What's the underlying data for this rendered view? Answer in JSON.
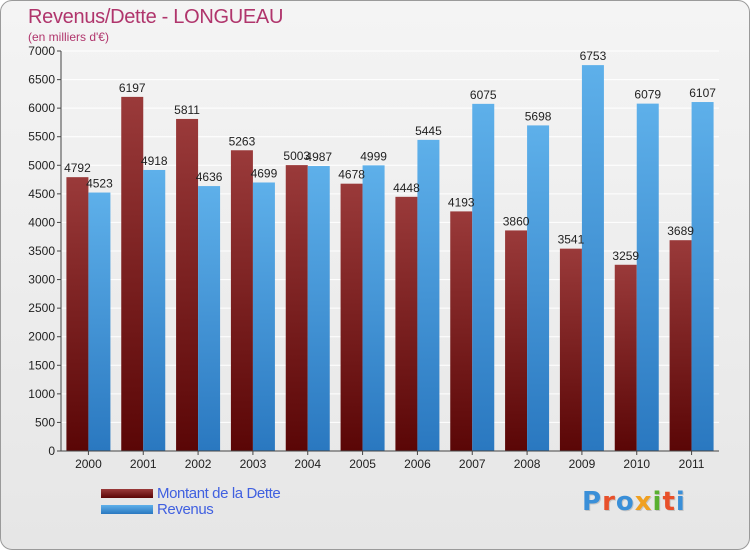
{
  "title": "Revenus/Dette - LONGUEAU",
  "subtitle": "(en milliers d'€)",
  "legend": {
    "debt_label": "Montant de la Dette",
    "revenue_label": "Revenus"
  },
  "logo": {
    "text": "Proxiti",
    "letters": [
      "P",
      "r",
      "o",
      "x",
      "i",
      "t",
      "i"
    ],
    "letter_colors": [
      "#3a8fd8",
      "#e8502a",
      "#3a8fd8",
      "#f0a020",
      "#58b030",
      "#e8502a",
      "#3a8fd8"
    ]
  },
  "colors": {
    "debt_top": "#9a3a3a",
    "debt_bottom": "#5a0606",
    "revenue_top": "#5eb0ea",
    "revenue_bottom": "#2a78c0",
    "grid": "#ffffff",
    "axis_text": "#222222"
  },
  "chart_data": {
    "type": "bar",
    "categories": [
      "2000",
      "2001",
      "2002",
      "2003",
      "2004",
      "2005",
      "2006",
      "2007",
      "2008",
      "2009",
      "2010",
      "2011"
    ],
    "series": [
      {
        "name": "Montant de la Dette",
        "values": [
          4792,
          6197,
          5811,
          5263,
          5003,
          4678,
          4448,
          4193,
          3860,
          3541,
          3259,
          3689
        ]
      },
      {
        "name": "Revenus",
        "values": [
          4523,
          4918,
          4636,
          4699,
          4987,
          4999,
          5445,
          6075,
          5698,
          6753,
          6079,
          6107
        ]
      }
    ],
    "ylim": [
      0,
      7000
    ],
    "yticks": [
      0,
      500,
      1000,
      1500,
      2000,
      2500,
      3000,
      3500,
      4000,
      4500,
      5000,
      5500,
      6000,
      6500,
      7000
    ],
    "grid": true,
    "legend_position": "bottom-left"
  }
}
